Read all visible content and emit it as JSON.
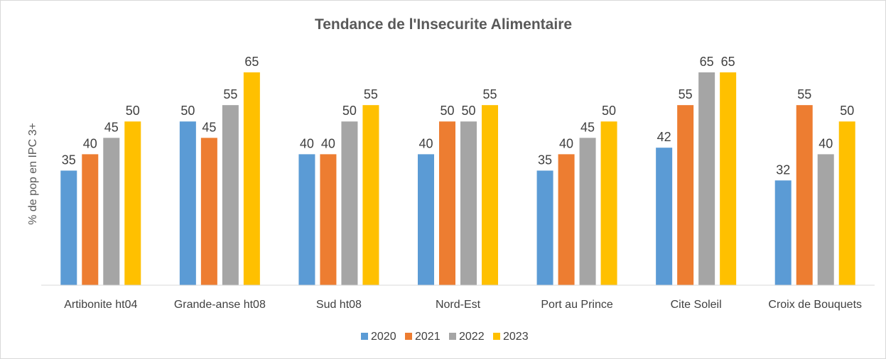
{
  "chart_data": {
    "type": "bar",
    "title": "Tendance de l'Insecurite Alimentaire",
    "ylabel": "% de pop en IPC 3+",
    "xlabel": "",
    "ylim": [
      0,
      65
    ],
    "grid": false,
    "legend_position": "bottom",
    "categories": [
      "Artibonite ht04",
      "Grande-anse ht08",
      "Sud ht08",
      "Nord-Est",
      "Port au Prince",
      "Cite Soleil",
      "Croix de Bouquets"
    ],
    "series": [
      {
        "name": "2020",
        "color": "#5B9BD5",
        "values": [
          35,
          50,
          40,
          40,
          35,
          42,
          32
        ]
      },
      {
        "name": "2021",
        "color": "#ED7D31",
        "values": [
          40,
          45,
          40,
          50,
          40,
          55,
          55
        ]
      },
      {
        "name": "2022",
        "color": "#A5A5A5",
        "values": [
          45,
          55,
          50,
          50,
          45,
          65,
          40
        ]
      },
      {
        "name": "2023",
        "color": "#FFC000",
        "values": [
          50,
          65,
          55,
          55,
          50,
          65,
          50
        ]
      }
    ]
  }
}
